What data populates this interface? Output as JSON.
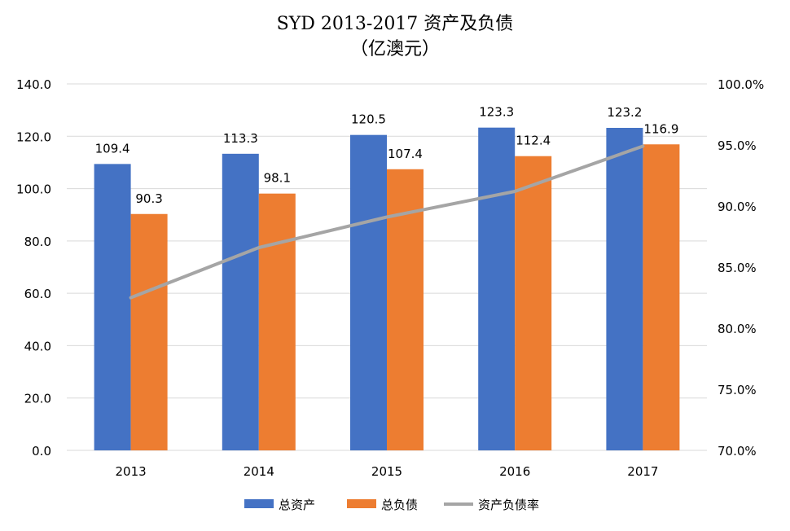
{
  "chart_data": {
    "type": "bar",
    "title": "SYD 2013-2017 资产及负债",
    "subtitle": "（亿澳元）",
    "categories": [
      "2013",
      "2014",
      "2015",
      "2016",
      "2017"
    ],
    "series": [
      {
        "name": "总资产",
        "type": "bar",
        "axis": "left",
        "color": "#4472C4",
        "values": [
          109.4,
          113.3,
          120.5,
          123.3,
          123.2
        ],
        "labels": [
          "109.4",
          "113.3",
          "120.5",
          "123.3",
          "123.2"
        ]
      },
      {
        "name": "总负债",
        "type": "bar",
        "axis": "left",
        "color": "#ED7D31",
        "values": [
          90.3,
          98.1,
          107.4,
          112.4,
          116.9
        ],
        "labels": [
          "90.3",
          "98.1",
          "107.4",
          "112.4",
          "116.9"
        ]
      },
      {
        "name": "资产负债率",
        "type": "line",
        "axis": "right",
        "color": "#A5A5A5",
        "values": [
          82.5,
          86.6,
          89.1,
          91.2,
          94.9
        ]
      }
    ],
    "y_left": {
      "range": [
        0,
        140
      ],
      "ticks": [
        "0.0",
        "20.0",
        "40.0",
        "60.0",
        "80.0",
        "100.0",
        "120.0",
        "140.0"
      ]
    },
    "y_right": {
      "range": [
        70,
        100
      ],
      "ticks": [
        "70.0%",
        "75.0%",
        "80.0%",
        "85.0%",
        "90.0%",
        "95.0%",
        "100.0%"
      ]
    },
    "grid": true,
    "legend_position": "bottom"
  }
}
